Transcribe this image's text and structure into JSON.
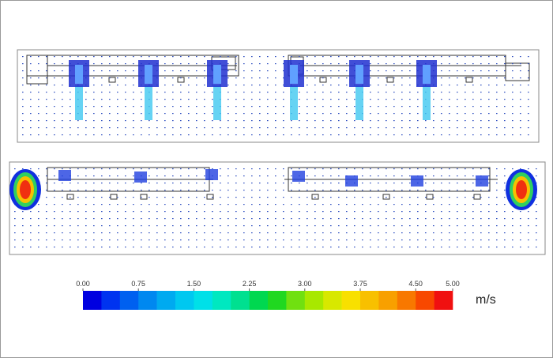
{
  "colorbar": {
    "range": [
      0,
      5
    ],
    "ticks": [
      {
        "value": 0,
        "label": "0.00"
      },
      {
        "value": 0.75,
        "label": "0.75"
      },
      {
        "value": 1.5,
        "label": "1.50"
      },
      {
        "value": 2.25,
        "label": "2.25"
      },
      {
        "value": 3,
        "label": "3.00"
      },
      {
        "value": 3.75,
        "label": "3.75"
      },
      {
        "value": 4.5,
        "label": "4.50"
      },
      {
        "value": 5,
        "label": "5.00"
      }
    ],
    "unit": "m/s",
    "colors": [
      "#0000e0",
      "#0033f0",
      "#0060f0",
      "#0088f0",
      "#00aaf0",
      "#00c8f0",
      "#00e0e8",
      "#00e8c0",
      "#00e090",
      "#00d850",
      "#20d820",
      "#70e010",
      "#a8e800",
      "#d8e800",
      "#f8e000",
      "#f8c000",
      "#f8a000",
      "#f87800",
      "#f84800",
      "#f01010"
    ]
  }
}
